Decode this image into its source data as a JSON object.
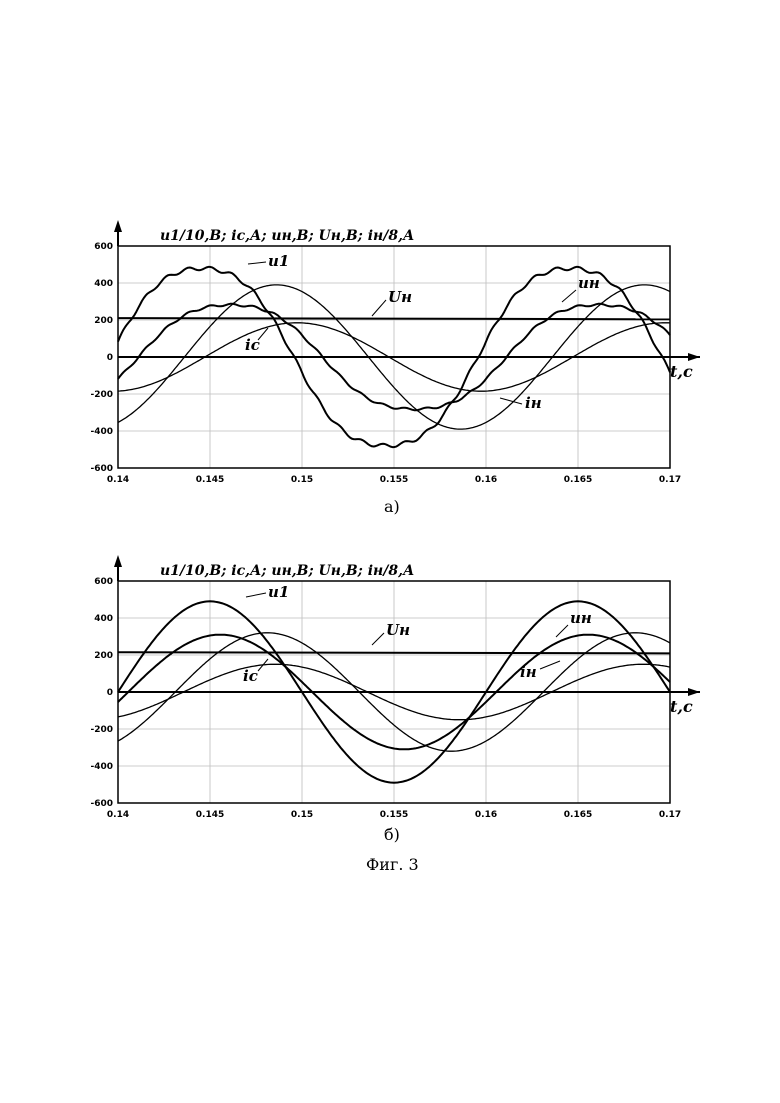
{
  "figure_caption": "Фиг. 3",
  "chart_data": [
    {
      "id": "a",
      "caption": "а)",
      "type": "line",
      "title": "u1/10,В; iс,А; uн,В; Uн,В; iн/8,А",
      "xlabel": "t,c",
      "xlim": [
        0.14,
        0.17
      ],
      "ylim": [
        -600,
        600
      ],
      "x_ticks": [
        "0.14",
        "0.145",
        "0.15",
        "0.155",
        "0.16",
        "0.165",
        "0.17"
      ],
      "y_ticks": [
        "600",
        "400",
        "200",
        "0",
        "-200",
        "-400",
        "-600"
      ],
      "grid": true,
      "series": [
        {
          "name": "u1",
          "amplitude": 510,
          "phase_deg": -8,
          "offset": 0,
          "distorted": true
        },
        {
          "name": "uн",
          "amplitude": 300,
          "phase_deg": 20,
          "offset": 0,
          "distorted": true
        },
        {
          "name": "iн",
          "amplitude": 390,
          "phase_deg": 65,
          "offset": 0,
          "distorted": false
        },
        {
          "name": "iс",
          "amplitude": 185,
          "phase_deg": 85,
          "offset": 0,
          "distorted": false
        },
        {
          "name": "Uн",
          "constant": 210
        }
      ],
      "labels": {
        "u1": "u1",
        "un": "uн",
        "Un": "Uн",
        "ic": "iс",
        "in": "iн"
      }
    },
    {
      "id": "b",
      "caption": "б)",
      "type": "line",
      "title": "u1/10,В; iс,А; uн,В; Uн,В; iн/8,А",
      "xlabel": "t,c",
      "xlim": [
        0.14,
        0.17
      ],
      "ylim": [
        -600,
        600
      ],
      "x_ticks": [
        "0.14",
        "0.145",
        "0.15",
        "0.155",
        "0.16",
        "0.165",
        "0.17"
      ],
      "y_ticks": [
        "600",
        "400",
        "200",
        "0",
        "-200",
        "-400",
        "-600"
      ],
      "grid": true,
      "series": [
        {
          "name": "u1",
          "amplitude": 490,
          "phase_deg": 0,
          "offset": 0,
          "distorted": false
        },
        {
          "name": "uн",
          "amplitude": 310,
          "phase_deg": 10,
          "offset": 0,
          "distorted": false
        },
        {
          "name": "iн",
          "amplitude": 320,
          "phase_deg": 56,
          "offset": 0,
          "distorted": false
        },
        {
          "name": "iс",
          "amplitude": 150,
          "phase_deg": 64,
          "offset": 0,
          "distorted": false
        },
        {
          "name": "Uн",
          "constant": 215
        }
      ],
      "labels": {
        "u1": "u1",
        "un": "uн",
        "Un": "Uн",
        "ic": "iс",
        "in": "iн"
      }
    }
  ]
}
